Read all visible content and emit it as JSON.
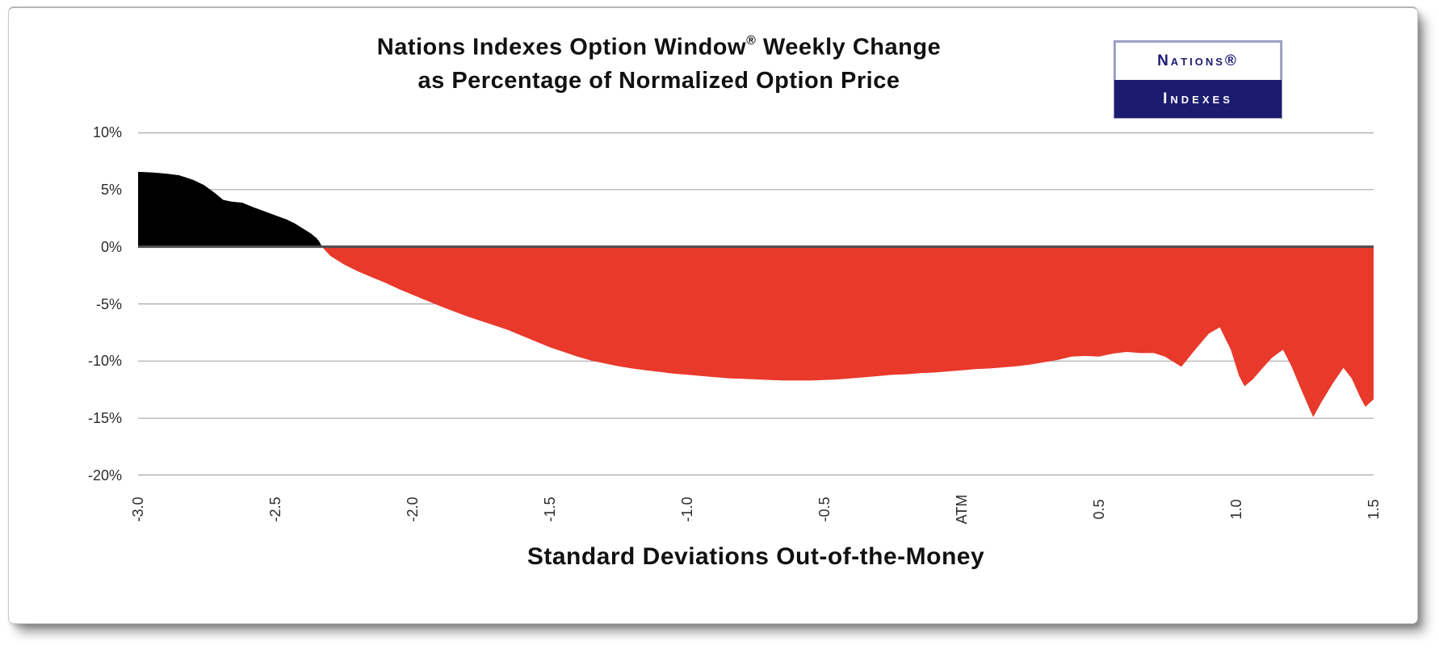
{
  "title": {
    "part1": "Nations Indexes Option Window",
    "registered": "®",
    "part2": " Weekly Change",
    "line2": "as Percentage of Normalized Option Price"
  },
  "logo": {
    "top": "Nαtions®",
    "bottom": "Indexes",
    "navy": "#1b1b70"
  },
  "chart_data": {
    "type": "area",
    "title": "Nations Indexes Option Window® Weekly Change as Percentage of Normalized Option Price",
    "xlabel": "Standard Deviations Out-of-the-Money",
    "ylabel": "",
    "xlim": [
      -3.0,
      1.5
    ],
    "ylim": [
      -20,
      10
    ],
    "grid": true,
    "positive_color": "#000000",
    "negative_color": "#e8392b",
    "gridline_color": "#a8a8a8",
    "zero_line_color": "#4d4d4d",
    "x_ticks": [
      {
        "label": "-3.0",
        "value": -3.0
      },
      {
        "label": "-2.5",
        "value": -2.5
      },
      {
        "label": "-2.0",
        "value": -2.0
      },
      {
        "label": "-1.5",
        "value": -1.5
      },
      {
        "label": "-1.0",
        "value": -1.0
      },
      {
        "label": "-0.5",
        "value": -0.5
      },
      {
        "label": "ATM",
        "value": 0.0
      },
      {
        "label": "0.5",
        "value": 0.5
      },
      {
        "label": "1.0",
        "value": 1.0
      },
      {
        "label": "1.5",
        "value": 1.5
      }
    ],
    "y_ticks": [
      {
        "label": "10%",
        "value": 10
      },
      {
        "label": "5%",
        "value": 5
      },
      {
        "label": "0%",
        "value": 0
      },
      {
        "label": "-5%",
        "value": -5
      },
      {
        "label": "-10%",
        "value": -10
      },
      {
        "label": "-15%",
        "value": -15
      },
      {
        "label": "-20%",
        "value": -20
      }
    ],
    "points": [
      [
        -3.0,
        6.55
      ],
      [
        -2.95,
        6.5
      ],
      [
        -2.9,
        6.4
      ],
      [
        -2.85,
        6.25
      ],
      [
        -2.8,
        5.85
      ],
      [
        -2.76,
        5.4
      ],
      [
        -2.72,
        4.7
      ],
      [
        -2.69,
        4.1
      ],
      [
        -2.66,
        3.95
      ],
      [
        -2.62,
        3.85
      ],
      [
        -2.58,
        3.45
      ],
      [
        -2.54,
        3.1
      ],
      [
        -2.5,
        2.75
      ],
      [
        -2.46,
        2.4
      ],
      [
        -2.43,
        2.05
      ],
      [
        -2.4,
        1.6
      ],
      [
        -2.37,
        1.15
      ],
      [
        -2.35,
        0.75
      ],
      [
        -2.34,
        0.45
      ],
      [
        -2.33,
        0.0
      ],
      [
        -2.3,
        -0.8
      ],
      [
        -2.25,
        -1.55
      ],
      [
        -2.2,
        -2.15
      ],
      [
        -2.15,
        -2.65
      ],
      [
        -2.1,
        -3.15
      ],
      [
        -2.05,
        -3.7
      ],
      [
        -2.0,
        -4.2
      ],
      [
        -1.95,
        -4.7
      ],
      [
        -1.9,
        -5.2
      ],
      [
        -1.85,
        -5.65
      ],
      [
        -1.8,
        -6.1
      ],
      [
        -1.75,
        -6.5
      ],
      [
        -1.7,
        -6.9
      ],
      [
        -1.65,
        -7.3
      ],
      [
        -1.6,
        -7.8
      ],
      [
        -1.55,
        -8.3
      ],
      [
        -1.5,
        -8.8
      ],
      [
        -1.45,
        -9.2
      ],
      [
        -1.4,
        -9.6
      ],
      [
        -1.35,
        -9.95
      ],
      [
        -1.3,
        -10.2
      ],
      [
        -1.25,
        -10.45
      ],
      [
        -1.2,
        -10.65
      ],
      [
        -1.15,
        -10.8
      ],
      [
        -1.1,
        -10.95
      ],
      [
        -1.05,
        -11.1
      ],
      [
        -1.0,
        -11.2
      ],
      [
        -0.95,
        -11.3
      ],
      [
        -0.9,
        -11.4
      ],
      [
        -0.85,
        -11.5
      ],
      [
        -0.8,
        -11.55
      ],
      [
        -0.75,
        -11.6
      ],
      [
        -0.7,
        -11.65
      ],
      [
        -0.65,
        -11.7
      ],
      [
        -0.6,
        -11.7
      ],
      [
        -0.55,
        -11.7
      ],
      [
        -0.5,
        -11.65
      ],
      [
        -0.45,
        -11.6
      ],
      [
        -0.4,
        -11.5
      ],
      [
        -0.35,
        -11.4
      ],
      [
        -0.3,
        -11.3
      ],
      [
        -0.25,
        -11.2
      ],
      [
        -0.2,
        -11.15
      ],
      [
        -0.15,
        -11.05
      ],
      [
        -0.1,
        -11.0
      ],
      [
        -0.05,
        -10.9
      ],
      [
        0.0,
        -10.8
      ],
      [
        0.05,
        -10.7
      ],
      [
        0.1,
        -10.65
      ],
      [
        0.15,
        -10.55
      ],
      [
        0.2,
        -10.45
      ],
      [
        0.25,
        -10.3
      ],
      [
        0.3,
        -10.1
      ],
      [
        0.35,
        -9.9
      ],
      [
        0.4,
        -9.6
      ],
      [
        0.45,
        -9.55
      ],
      [
        0.5,
        -9.6
      ],
      [
        0.55,
        -9.35
      ],
      [
        0.6,
        -9.2
      ],
      [
        0.65,
        -9.3
      ],
      [
        0.7,
        -9.3
      ],
      [
        0.74,
        -9.6
      ],
      [
        0.8,
        -10.5
      ],
      [
        0.85,
        -9.0
      ],
      [
        0.9,
        -7.6
      ],
      [
        0.94,
        -7.05
      ],
      [
        0.98,
        -9.0
      ],
      [
        1.01,
        -11.3
      ],
      [
        1.03,
        -12.2
      ],
      [
        1.06,
        -11.6
      ],
      [
        1.1,
        -10.5
      ],
      [
        1.13,
        -9.7
      ],
      [
        1.17,
        -9.0
      ],
      [
        1.2,
        -10.4
      ],
      [
        1.24,
        -12.7
      ],
      [
        1.28,
        -14.9
      ],
      [
        1.31,
        -13.6
      ],
      [
        1.35,
        -12.0
      ],
      [
        1.39,
        -10.6
      ],
      [
        1.42,
        -11.5
      ],
      [
        1.45,
        -13.1
      ],
      [
        1.47,
        -14.0
      ],
      [
        1.5,
        -13.35
      ]
    ]
  }
}
